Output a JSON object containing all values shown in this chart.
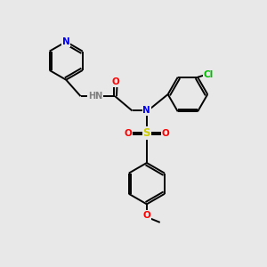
{
  "background_color": "#e8e8e8",
  "bond_color": "#000000",
  "atom_colors": {
    "N": "#0000ee",
    "O": "#ff0000",
    "S": "#cccc00",
    "Cl": "#00bb00",
    "H": "#808080",
    "C": "#000000"
  },
  "figsize": [
    3.0,
    3.0
  ],
  "dpi": 100,
  "lw": 1.4
}
